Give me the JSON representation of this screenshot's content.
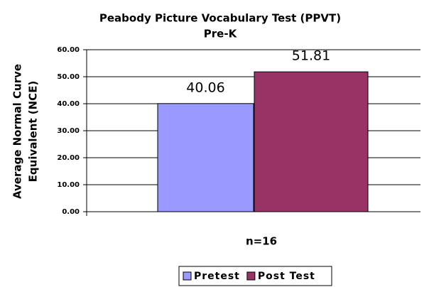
{
  "chart_data": {
    "type": "bar",
    "title": "Peabody Picture Vocabulary Test (PPVT)",
    "subtitle": "Pre-K",
    "ylabel": [
      "Average Normal Curve",
      "Equivalent (NCE)"
    ],
    "categories": [
      "n=16"
    ],
    "series": [
      {
        "name": "Pretest",
        "color": "#9999ff",
        "values": [
          40.06
        ]
      },
      {
        "name": "Post Test",
        "color": "#993366",
        "values": [
          51.81
        ]
      }
    ],
    "ylim": [
      0,
      60
    ],
    "yticks": [
      {
        "value": 0,
        "label": "0.00"
      },
      {
        "value": 10,
        "label": "10.00"
      },
      {
        "value": 20,
        "label": "20.00"
      },
      {
        "value": 30,
        "label": "30.00"
      },
      {
        "value": 40,
        "label": "40.00"
      },
      {
        "value": 50,
        "label": "50.00"
      },
      {
        "value": 60,
        "label": "60.00"
      }
    ],
    "grid": true,
    "legend": "bottom"
  }
}
